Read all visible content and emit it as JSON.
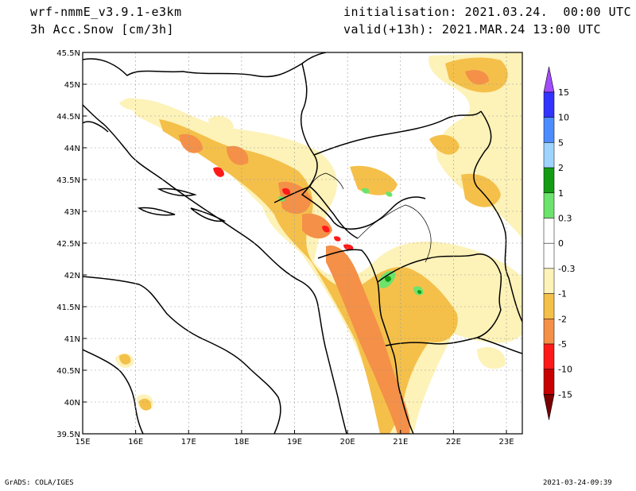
{
  "header": {
    "model": "wrf-nmmE_v3.9.1-e3km",
    "variable": "3h Acc.Snow [cm/3h]",
    "init": "initialisation: 2021.03.24.  00:00 UTC",
    "valid": "valid(+13h): 2021.MAR.24 13:00 UTC"
  },
  "footer": {
    "credit": "GrADS: COLA/IGES",
    "timestamp": "2021-03-24-09:39"
  },
  "map": {
    "lon_ticks": [
      "15E",
      "16E",
      "17E",
      "18E",
      "19E",
      "20E",
      "21E",
      "22E",
      "23E"
    ],
    "lat_ticks": [
      "45.5N",
      "45N",
      "44.5N",
      "44N",
      "43.5N",
      "43N",
      "42.5N",
      "42N",
      "41.5N",
      "41N",
      "40.5N",
      "40N",
      "39.5N"
    ],
    "lon_range": [
      15,
      23.3
    ],
    "lat_range": [
      39.5,
      45.5
    ]
  },
  "colorbar": {
    "labels": [
      "15",
      "10",
      "5",
      "2",
      "1",
      "0.3",
      "0",
      "-0.3",
      "-1",
      "-2",
      "-5",
      "-10",
      "-15"
    ],
    "colors": [
      "#3333ff",
      "#4d8cff",
      "#9fd3ff",
      "#139c13",
      "#6ce36c",
      "#ffffff",
      "#ffffff",
      "#fdf2b8",
      "#f4c04a",
      "#f49048",
      "#ff1a1a",
      "#c80000",
      "#8c0000"
    ],
    "top_arrow_color": "#a34cff",
    "bottom_arrow_color": "#7a0000"
  },
  "colors": {
    "light": "#fdf2b8",
    "mid": "#f4c04a",
    "orange": "#f49048",
    "red": "#ff1a1a",
    "green": "#6ce36c",
    "dkgreen": "#139c13"
  }
}
